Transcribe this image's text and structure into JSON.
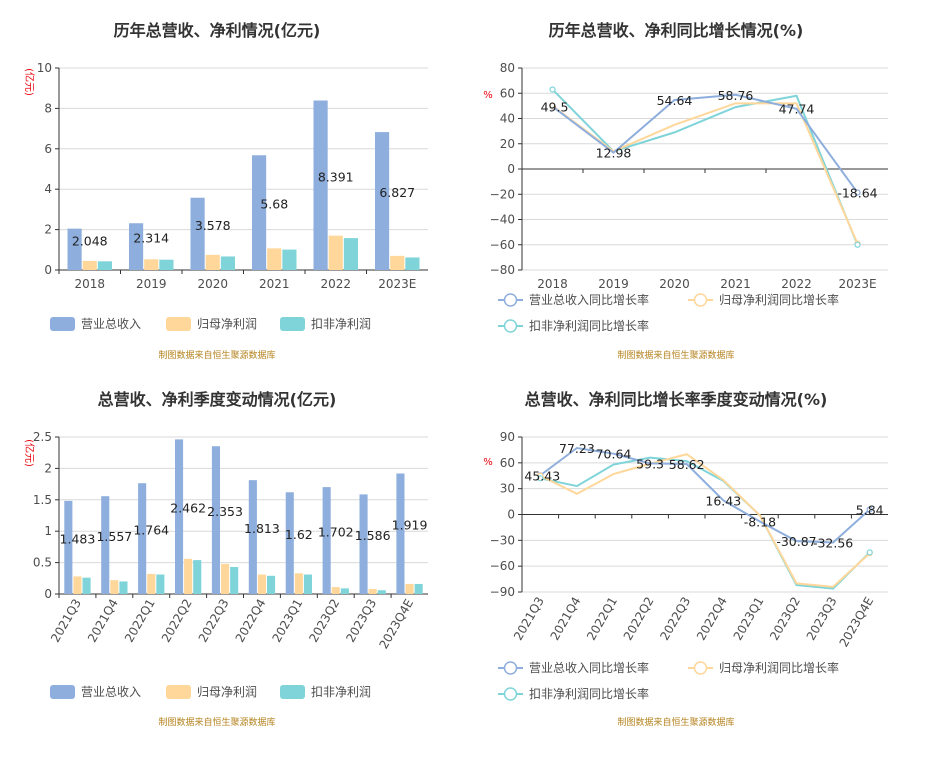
{
  "colors": {
    "revenue": "#8eaedd",
    "net_profit": "#ffd79a",
    "deducted_profit": "#7fd4d9",
    "unit_text": "#e8000b",
    "source_text": "#b5831f"
  },
  "chart_data": [
    {
      "id": "annual_amounts",
      "type": "bar",
      "title": "历年总营收、净利情况(亿元)",
      "unit_label": "(亿元)",
      "categories": [
        "2018",
        "2019",
        "2020",
        "2021",
        "2022",
        "2023E"
      ],
      "ylim": [
        0,
        10
      ],
      "yticks": [
        0,
        2,
        4,
        6,
        8,
        10
      ],
      "grid": true,
      "legend_position": "bottom",
      "series": [
        {
          "name": "营业总收入",
          "color_key": "revenue",
          "values": [
            2.048,
            2.314,
            3.578,
            5.68,
            8.391,
            6.827
          ],
          "labels": [
            "2.048",
            "2.314",
            "3.578",
            "5.68",
            "8.391",
            "6.827"
          ]
        },
        {
          "name": "归母净利润",
          "color_key": "net_profit",
          "values": [
            0.45,
            0.53,
            0.75,
            1.07,
            1.7,
            0.7
          ]
        },
        {
          "name": "扣非净利润",
          "color_key": "deducted_profit",
          "values": [
            0.43,
            0.51,
            0.67,
            1.01,
            1.58,
            0.62
          ]
        }
      ],
      "source": "制图数据来自恒生聚源数据库"
    },
    {
      "id": "annual_growth",
      "type": "line",
      "title": "历年总营收、净利同比增长情况(%)",
      "unit_label": "%",
      "categories": [
        "2018",
        "2019",
        "2020",
        "2021",
        "2022",
        "2023E"
      ],
      "ylim": [
        -80,
        80
      ],
      "yticks": [
        -80,
        -60,
        -40,
        -20,
        0,
        20,
        40,
        60,
        80
      ],
      "grid": true,
      "legend_position": "bottom",
      "series": [
        {
          "name": "营业总收入同比增长率",
          "color_key": "revenue",
          "values": [
            49.5,
            12.98,
            54.64,
            58.76,
            47.74,
            -18.64
          ],
          "labels": [
            "49.5",
            "12.98",
            "54.64",
            "58.76",
            "47.74",
            "-18.64"
          ]
        },
        {
          "name": "归母净利润同比增长率",
          "color_key": "net_profit",
          "values": [
            50,
            14,
            35,
            52,
            52,
            -59
          ]
        },
        {
          "name": "扣非净利润同比增长率",
          "color_key": "deducted_profit",
          "values": [
            63,
            14,
            29,
            49,
            58,
            -60
          ]
        }
      ],
      "source": "制图数据来自恒生聚源数据库"
    },
    {
      "id": "quarterly_amounts",
      "type": "bar",
      "title": "总营收、净利季度变动情况(亿元)",
      "unit_label": "(亿元)",
      "categories": [
        "2021Q3",
        "2021Q4",
        "2022Q1",
        "2022Q2",
        "2022Q3",
        "2022Q4",
        "2023Q1",
        "2023Q2",
        "2023Q3",
        "2023Q4E"
      ],
      "ylim": [
        0,
        2.5
      ],
      "yticks": [
        0,
        0.5,
        1,
        1.5,
        2,
        2.5
      ],
      "grid": true,
      "legend_position": "bottom",
      "series": [
        {
          "name": "营业总收入",
          "color_key": "revenue",
          "values": [
            1.483,
            1.557,
            1.764,
            2.462,
            2.353,
            1.813,
            1.62,
            1.702,
            1.586,
            1.919
          ],
          "labels": [
            "1.483",
            "1.557",
            "1.764",
            "2.462",
            "2.353",
            "1.813",
            "1.62",
            "1.702",
            "1.586",
            "1.919"
          ]
        },
        {
          "name": "归母净利润",
          "color_key": "net_profit",
          "values": [
            0.28,
            0.22,
            0.32,
            0.56,
            0.48,
            0.31,
            0.33,
            0.11,
            0.08,
            0.16
          ]
        },
        {
          "name": "扣非净利润",
          "color_key": "deducted_profit",
          "values": [
            0.26,
            0.2,
            0.31,
            0.54,
            0.43,
            0.29,
            0.31,
            0.09,
            0.06,
            0.16
          ]
        }
      ],
      "source": "制图数据来自恒生聚源数据库"
    },
    {
      "id": "quarterly_growth",
      "type": "line",
      "title": "总营收、净利同比增长率季度变动情况(%)",
      "unit_label": "%",
      "categories": [
        "2021Q3",
        "2021Q4",
        "2022Q1",
        "2022Q2",
        "2022Q3",
        "2022Q4",
        "2023Q1",
        "2023Q2",
        "2023Q3",
        "2023Q4E"
      ],
      "ylim": [
        -90,
        90
      ],
      "yticks": [
        -90,
        -60,
        -30,
        0,
        30,
        60,
        90
      ],
      "grid": true,
      "legend_position": "bottom",
      "series": [
        {
          "name": "营业总收入同比增长率",
          "color_key": "revenue",
          "values": [
            45.43,
            77.23,
            70.64,
            59.3,
            58.62,
            16.43,
            -8.18,
            -30.87,
            -32.56,
            5.84
          ],
          "labels": [
            "45.43",
            "77.23",
            "70.64",
            "59.3",
            "58.62",
            "16.43",
            "-8.18",
            "-30.87",
            "-32.56",
            "5.84"
          ]
        },
        {
          "name": "归母净利润同比增长率",
          "color_key": "net_profit",
          "values": [
            45,
            24,
            47,
            59,
            70,
            40,
            -1,
            -80,
            -84,
            -45
          ]
        },
        {
          "name": "扣非净利润同比增长率",
          "color_key": "deducted_profit",
          "values": [
            42,
            33,
            58,
            66,
            62,
            39,
            -1,
            -82,
            -86,
            -44
          ]
        }
      ],
      "source": "制图数据来自恒生聚源数据库"
    }
  ]
}
